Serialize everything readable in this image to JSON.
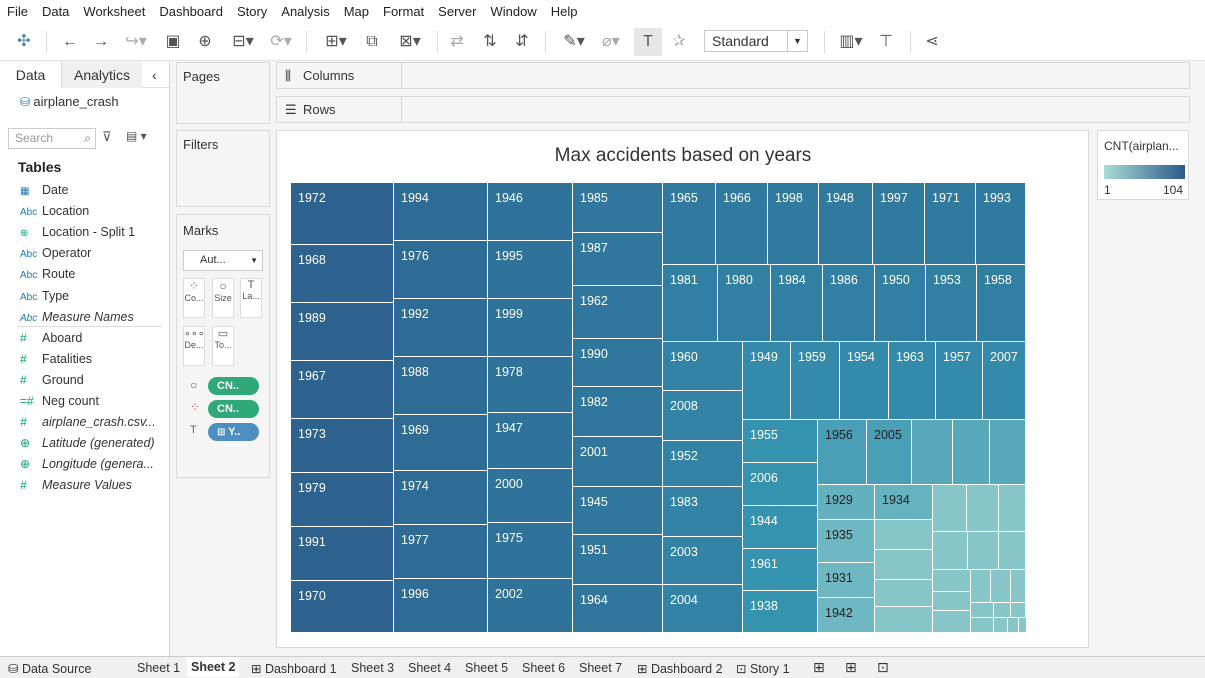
{
  "menu": [
    "File",
    "Data",
    "Worksheet",
    "Dashboard",
    "Story",
    "Analysis",
    "Map",
    "Format",
    "Server",
    "Window",
    "Help"
  ],
  "toolbar": {
    "standard": "Standard"
  },
  "pane": {
    "data_tab": "Data",
    "analytics_tab": "Analytics",
    "datasource": "airplane_crash",
    "search_placeholder": "Search",
    "tables_header": "Tables"
  },
  "fields": [
    {
      "icon": "calendar-icon",
      "glyph": "▦",
      "name": "Date",
      "kind": "dim"
    },
    {
      "icon": "abc-icon",
      "glyph": "Abc",
      "name": "Location",
      "kind": "dim"
    },
    {
      "icon": "globe-icon",
      "glyph": "⊕",
      "name": "Location - Split 1",
      "kind": "dim"
    },
    {
      "icon": "abc-icon",
      "glyph": "Abc",
      "name": "Operator",
      "kind": "dim"
    },
    {
      "icon": "abc-icon",
      "glyph": "Abc",
      "name": "Route",
      "kind": "dim"
    },
    {
      "icon": "abc-icon",
      "glyph": "Abc",
      "name": "Type",
      "kind": "dim"
    },
    {
      "icon": "abc-icon",
      "glyph": "Abc",
      "name": "Measure Names",
      "kind": "dim-it"
    },
    {
      "icon": "hash-icon",
      "glyph": "#",
      "name": "Aboard",
      "kind": "mea"
    },
    {
      "icon": "hash-icon",
      "glyph": "#",
      "name": "Fatalities",
      "kind": "mea"
    },
    {
      "icon": "hash-icon",
      "glyph": "#",
      "name": "Ground",
      "kind": "mea"
    },
    {
      "icon": "hash-calc-icon",
      "glyph": "=#",
      "name": "Neg count",
      "kind": "mea"
    },
    {
      "icon": "hash-icon",
      "glyph": "#",
      "name": "airplane_crash.csv...",
      "kind": "mea-it"
    },
    {
      "icon": "globe-icon",
      "glyph": "⊕",
      "name": "Latitude (generated)",
      "kind": "mea-it"
    },
    {
      "icon": "globe-icon",
      "glyph": "⊕",
      "name": "Longitude (genera...",
      "kind": "mea-it"
    },
    {
      "icon": "hash-icon",
      "glyph": "#",
      "name": "Measure Values",
      "kind": "mea-it"
    }
  ],
  "shelves": {
    "pages": "Pages",
    "columns": "Columns",
    "rows": "Rows",
    "filters": "Filters",
    "marks": "Marks",
    "mark_type": "Aut...",
    "mark_buttons": [
      "Co...",
      "Size",
      "La...",
      "De...",
      "To..."
    ],
    "pills": [
      "CN..",
      "CN..",
      "Y.."
    ]
  },
  "viz": {
    "title": "Max accidents based on years"
  },
  "legend": {
    "title": "CNT(airplan...",
    "min": "1",
    "max": "104"
  },
  "chart_data": {
    "type": "treemap",
    "title": "Max accidents based on years",
    "measure": "CNT(airplane_crash)",
    "color_range": [
      1,
      104
    ],
    "labeled_years": [
      "1972",
      "1968",
      "1989",
      "1967",
      "1973",
      "1979",
      "1991",
      "1970",
      "1994",
      "1976",
      "1992",
      "1988",
      "1969",
      "1974",
      "1977",
      "1996",
      "1946",
      "1995",
      "1999",
      "1978",
      "1947",
      "2000",
      "1975",
      "2002",
      "1985",
      "1987",
      "1962",
      "1990",
      "1982",
      "2001",
      "1945",
      "1951",
      "1964",
      "1965",
      "1966",
      "1998",
      "1948",
      "1997",
      "1971",
      "1993",
      "1981",
      "1980",
      "1984",
      "1986",
      "1950",
      "1953",
      "1958",
      "1960",
      "2008",
      "1952",
      "1983",
      "2003",
      "2004",
      "1949",
      "1959",
      "1954",
      "1963",
      "1957",
      "2007",
      "1955",
      "2006",
      "1944",
      "1961",
      "1938",
      "1956",
      "2005",
      "1929",
      "1934",
      "1935",
      "1931",
      "1942"
    ]
  },
  "tabs": [
    "Data Source",
    "Sheet 1",
    "Sheet 2",
    "Dashboard 1",
    "Sheet 3",
    "Sheet 4",
    "Sheet 5",
    "Sheet 6",
    "Sheet 7",
    "Dashboard 2",
    "Story 1"
  ],
  "active_tab": "Sheet 2"
}
